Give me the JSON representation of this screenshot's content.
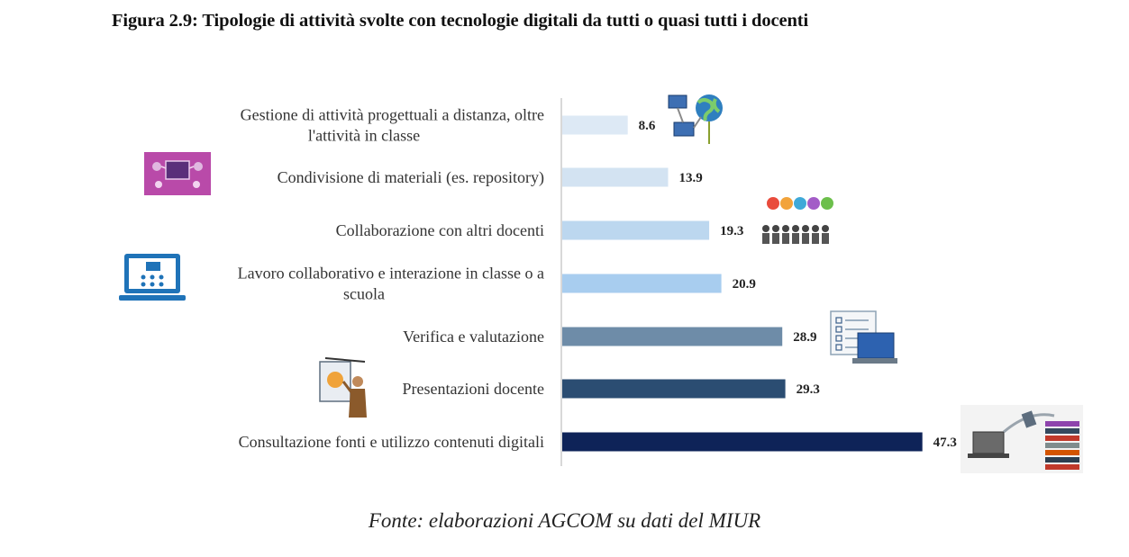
{
  "figure": {
    "title": "Figura 2.9: Tipologie di attività svolte con tecnologie digitali da tutti o quasi tutti i docenti",
    "source": "Fonte: elaborazioni AGCOM su dati del MIUR"
  },
  "chart_data": {
    "type": "bar",
    "orientation": "horizontal",
    "title": "Figura 2.9: Tipologie di attività svolte con tecnologie digitali da tutti o quasi tutti i docenti",
    "xlabel": "",
    "ylabel": "",
    "grid": false,
    "legend": "none",
    "categories": [
      [
        "Gestione di attività progettuali a distanza, oltre",
        "l'attività in classe"
      ],
      [
        "Condivisione di materiali (es. repository)"
      ],
      [
        "Collaborazione con altri docenti"
      ],
      [
        "Lavoro collaborativo e interazione in classe o a",
        "scuola"
      ],
      [
        "Verifica e valutazione"
      ],
      [
        "Presentazioni docente"
      ],
      [
        "Consultazione fonti e utilizzo contenuti digitali"
      ]
    ],
    "values": [
      8.6,
      13.9,
      19.3,
      20.9,
      28.9,
      29.3,
      47.3
    ],
    "value_labels": [
      "8.6",
      "13.9",
      "19.3",
      "20.9",
      "28.9",
      "29.3",
      "47.3"
    ],
    "bar_colors": [
      "#dde9f5",
      "#d3e3f2",
      "#bcd7ef",
      "#a8cdef",
      "#6e8ca8",
      "#2b4d72",
      "#0e2358"
    ],
    "icons": [
      "network-globe-icon",
      "shared-materials-icon",
      "collaborating-teachers-icon",
      "classroom-laptop-icon",
      "checklist-evaluation-icon",
      "teacher-presentation-icon",
      "digital-books-icon"
    ]
  }
}
